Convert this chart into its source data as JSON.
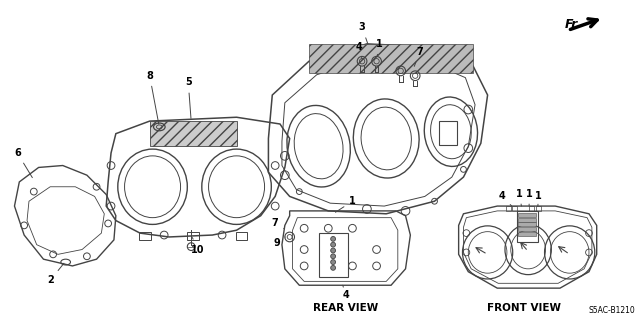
{
  "background_color": "#ffffff",
  "line_color": "#444444",
  "text_color": "#000000",
  "figsize": [
    6.4,
    3.19
  ],
  "dpi": 100,
  "fr_label": "Fr.",
  "rear_view_label": "REAR VIEW",
  "front_view_label": "FRONT VIEW",
  "code_label": "S5AC-B1210"
}
